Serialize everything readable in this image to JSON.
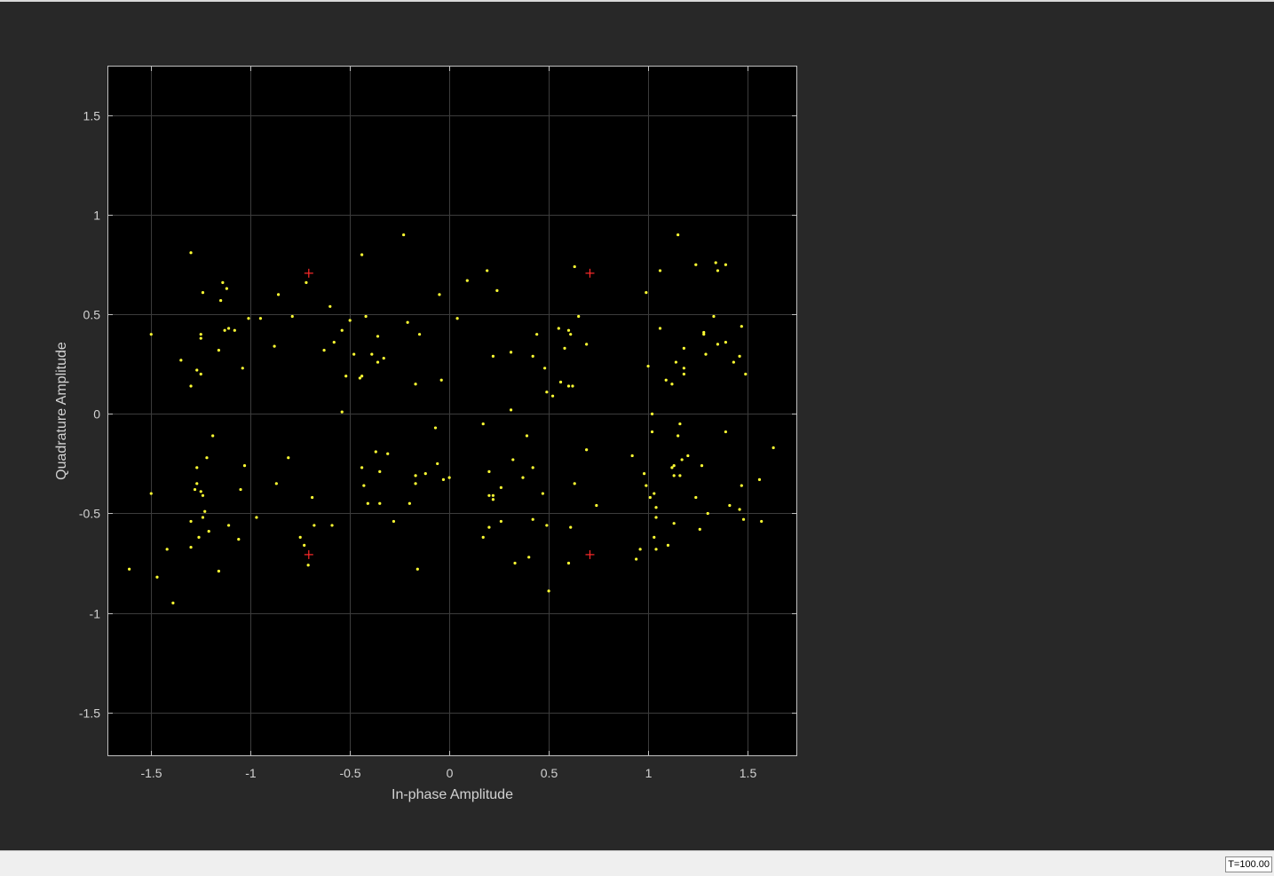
{
  "status_bar": {
    "time_readout": "T=100.00"
  },
  "colors": {
    "figure_background": "#282828",
    "axes_background": "#000000",
    "grid": "#3c3c3c",
    "axis_box": "#bfbfbf",
    "tick_label": "#d2d2d2",
    "received_symbols": "#ffff33",
    "reference_constellation": "#ff2a2a"
  },
  "chart_data": {
    "type": "scatter",
    "title": "",
    "xlabel": "In-phase Amplitude",
    "ylabel": "Quadrature Amplitude",
    "xlim": [
      -1.72,
      1.75
    ],
    "ylim": [
      -1.72,
      1.75
    ],
    "xticks": [
      -1.5,
      -1,
      -0.5,
      0,
      0.5,
      1,
      1.5
    ],
    "xtick_labels": [
      "-1.5",
      "-1",
      "-0.5",
      "0",
      "0.5",
      "1",
      "1.5"
    ],
    "yticks": [
      -1.5,
      -1,
      -0.5,
      0,
      0.5,
      1,
      1.5
    ],
    "ytick_labels": [
      "-1.5",
      "-1",
      "-0.5",
      "0",
      "0.5",
      "1",
      "1.5"
    ],
    "grid": true,
    "legend": "none",
    "series": [
      {
        "marker": "dot",
        "color": "#ffff33",
        "points": [
          [
            -1.3,
            0.81
          ],
          [
            -1.24,
            0.61
          ],
          [
            -1.14,
            0.66
          ],
          [
            -1.12,
            0.63
          ],
          [
            -1.15,
            0.57
          ],
          [
            -1.5,
            0.4
          ],
          [
            -1.25,
            0.4
          ],
          [
            -1.25,
            0.38
          ],
          [
            -1.13,
            0.42
          ],
          [
            -1.11,
            0.43
          ],
          [
            -1.08,
            0.42
          ],
          [
            -1.35,
            0.27
          ],
          [
            -1.27,
            0.22
          ],
          [
            -1.25,
            0.2
          ],
          [
            -1.16,
            0.32
          ],
          [
            -1.04,
            0.23
          ],
          [
            -1.3,
            0.14
          ],
          [
            -1.01,
            0.48
          ],
          [
            -0.95,
            0.48
          ],
          [
            -0.79,
            0.49
          ],
          [
            -0.86,
            0.6
          ],
          [
            -0.88,
            0.34
          ],
          [
            -0.72,
            0.66
          ],
          [
            -0.6,
            0.54
          ],
          [
            -0.63,
            0.32
          ],
          [
            -0.58,
            0.36
          ],
          [
            -0.54,
            0.42
          ],
          [
            -0.5,
            0.47
          ],
          [
            -0.52,
            0.19
          ],
          [
            -0.48,
            0.3
          ],
          [
            -0.45,
            0.18
          ],
          [
            -0.44,
            0.19
          ],
          [
            -0.42,
            0.49
          ],
          [
            -0.39,
            0.3
          ],
          [
            -0.36,
            0.39
          ],
          [
            -0.36,
            0.26
          ],
          [
            -0.33,
            0.28
          ],
          [
            -0.54,
            0.01
          ],
          [
            -0.44,
            0.8
          ],
          [
            -0.23,
            0.9
          ],
          [
            -0.21,
            0.46
          ],
          [
            -0.15,
            0.4
          ],
          [
            -0.17,
            0.15
          ],
          [
            -0.05,
            0.6
          ],
          [
            -0.04,
            0.17
          ],
          [
            0.04,
            0.48
          ],
          [
            0.09,
            0.67
          ],
          [
            0.19,
            0.72
          ],
          [
            0.24,
            0.62
          ],
          [
            0.22,
            0.29
          ],
          [
            0.31,
            0.31
          ],
          [
            0.31,
            0.02
          ],
          [
            0.42,
            0.29
          ],
          [
            0.44,
            0.4
          ],
          [
            0.48,
            0.23
          ],
          [
            0.49,
            0.11
          ],
          [
            0.52,
            0.09
          ],
          [
            0.55,
            0.43
          ],
          [
            0.56,
            0.16
          ],
          [
            0.58,
            0.33
          ],
          [
            0.6,
            0.42
          ],
          [
            0.61,
            0.4
          ],
          [
            0.6,
            0.14
          ],
          [
            0.62,
            0.14
          ],
          [
            0.63,
            0.74
          ],
          [
            0.65,
            0.49
          ],
          [
            0.69,
            0.35
          ],
          [
            0.99,
            0.61
          ],
          [
            1.0,
            0.24
          ],
          [
            1.06,
            0.72
          ],
          [
            1.06,
            0.43
          ],
          [
            1.09,
            0.17
          ],
          [
            1.12,
            0.15
          ],
          [
            1.14,
            0.26
          ],
          [
            1.15,
            0.9
          ],
          [
            1.18,
            0.33
          ],
          [
            1.18,
            0.23
          ],
          [
            1.18,
            0.2
          ],
          [
            1.24,
            0.75
          ],
          [
            1.28,
            0.41
          ],
          [
            1.28,
            0.4
          ],
          [
            1.29,
            0.3
          ],
          [
            1.33,
            0.49
          ],
          [
            1.34,
            0.76
          ],
          [
            1.35,
            0.72
          ],
          [
            1.35,
            0.35
          ],
          [
            1.39,
            0.75
          ],
          [
            1.39,
            0.36
          ],
          [
            1.43,
            0.26
          ],
          [
            1.46,
            0.29
          ],
          [
            1.47,
            0.44
          ],
          [
            1.49,
            0.2
          ],
          [
            -1.19,
            -0.11
          ],
          [
            -1.22,
            -0.22
          ],
          [
            -1.27,
            -0.27
          ],
          [
            -1.27,
            -0.35
          ],
          [
            -1.28,
            -0.38
          ],
          [
            -1.25,
            -0.39
          ],
          [
            -1.24,
            -0.41
          ],
          [
            -1.5,
            -0.4
          ],
          [
            -1.23,
            -0.49
          ],
          [
            -1.3,
            -0.54
          ],
          [
            -1.26,
            -0.62
          ],
          [
            -1.24,
            -0.52
          ],
          [
            -1.21,
            -0.59
          ],
          [
            -1.11,
            -0.56
          ],
          [
            -1.3,
            -0.67
          ],
          [
            -1.42,
            -0.68
          ],
          [
            -1.47,
            -0.82
          ],
          [
            -1.39,
            -0.95
          ],
          [
            -1.61,
            -0.78
          ],
          [
            -1.16,
            -0.79
          ],
          [
            -1.06,
            -0.63
          ],
          [
            -1.05,
            -0.38
          ],
          [
            -1.03,
            -0.26
          ],
          [
            -0.97,
            -0.52
          ],
          [
            -0.87,
            -0.35
          ],
          [
            -0.81,
            -0.22
          ],
          [
            -0.75,
            -0.62
          ],
          [
            -0.73,
            -0.66
          ],
          [
            -0.71,
            -0.76
          ],
          [
            -0.69,
            -0.42
          ],
          [
            -0.68,
            -0.56
          ],
          [
            -0.59,
            -0.56
          ],
          [
            -0.44,
            -0.27
          ],
          [
            -0.43,
            -0.36
          ],
          [
            -0.41,
            -0.45
          ],
          [
            -0.37,
            -0.19
          ],
          [
            -0.35,
            -0.29
          ],
          [
            -0.35,
            -0.45
          ],
          [
            -0.31,
            -0.2
          ],
          [
            -0.28,
            -0.54
          ],
          [
            -0.2,
            -0.45
          ],
          [
            -0.17,
            -0.31
          ],
          [
            -0.17,
            -0.35
          ],
          [
            -0.12,
            -0.3
          ],
          [
            -0.07,
            -0.07
          ],
          [
            -0.06,
            -0.25
          ],
          [
            -0.03,
            -0.33
          ],
          [
            0.0,
            -0.32
          ],
          [
            -0.16,
            -0.78
          ],
          [
            0.17,
            -0.05
          ],
          [
            0.2,
            -0.29
          ],
          [
            0.2,
            -0.41
          ],
          [
            0.22,
            -0.41
          ],
          [
            0.22,
            -0.43
          ],
          [
            0.26,
            -0.37
          ],
          [
            0.26,
            -0.54
          ],
          [
            0.17,
            -0.62
          ],
          [
            0.2,
            -0.57
          ],
          [
            0.32,
            -0.23
          ],
          [
            0.33,
            -0.75
          ],
          [
            0.37,
            -0.32
          ],
          [
            0.39,
            -0.11
          ],
          [
            0.4,
            -0.72
          ],
          [
            0.42,
            -0.27
          ],
          [
            0.42,
            -0.53
          ],
          [
            0.47,
            -0.4
          ],
          [
            0.49,
            -0.56
          ],
          [
            0.5,
            -0.89
          ],
          [
            0.6,
            -0.75
          ],
          [
            0.61,
            -0.57
          ],
          [
            0.63,
            -0.35
          ],
          [
            0.69,
            -0.18
          ],
          [
            0.74,
            -0.46
          ],
          [
            0.92,
            -0.21
          ],
          [
            0.94,
            -0.73
          ],
          [
            0.96,
            -0.68
          ],
          [
            0.98,
            -0.3
          ],
          [
            0.99,
            -0.36
          ],
          [
            1.01,
            -0.42
          ],
          [
            1.03,
            -0.4
          ],
          [
            1.02,
            -0.09
          ],
          [
            1.03,
            -0.62
          ],
          [
            1.04,
            -0.47
          ],
          [
            1.04,
            -0.52
          ],
          [
            1.04,
            -0.68
          ],
          [
            1.1,
            -0.66
          ],
          [
            1.12,
            -0.27
          ],
          [
            1.13,
            -0.26
          ],
          [
            1.13,
            -0.31
          ],
          [
            1.13,
            -0.55
          ],
          [
            1.15,
            -0.11
          ],
          [
            1.16,
            -0.05
          ],
          [
            1.16,
            -0.31
          ],
          [
            1.17,
            -0.23
          ],
          [
            1.2,
            -0.21
          ],
          [
            1.24,
            -0.42
          ],
          [
            1.26,
            -0.58
          ],
          [
            1.27,
            -0.26
          ],
          [
            1.3,
            -0.5
          ],
          [
            1.39,
            -0.09
          ],
          [
            1.41,
            -0.46
          ],
          [
            1.46,
            -0.48
          ],
          [
            1.47,
            -0.36
          ],
          [
            1.48,
            -0.53
          ],
          [
            1.56,
            -0.33
          ],
          [
            1.57,
            -0.54
          ],
          [
            1.63,
            -0.17
          ],
          [
            1.02,
            0.0
          ]
        ]
      },
      {
        "marker": "plus",
        "color": "#ff2a2a",
        "points": [
          [
            -0.7071,
            0.7071
          ],
          [
            0.7071,
            0.7071
          ],
          [
            -0.7071,
            -0.7071
          ],
          [
            0.7071,
            -0.7071
          ]
        ]
      }
    ]
  }
}
